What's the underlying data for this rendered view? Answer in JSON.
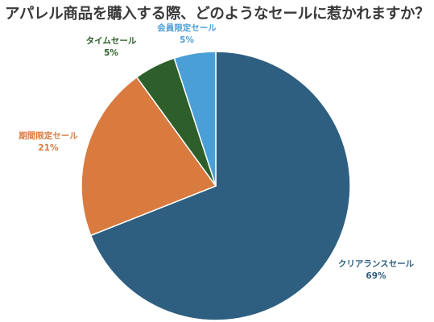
{
  "chart_data": {
    "type": "pie",
    "title": "アパレル商品を購入する際、どのようなセールに惹かれますか？",
    "slices": [
      {
        "label": "クリアランスセール",
        "value": 69,
        "value_label": "69%",
        "color": "#2e5f80"
      },
      {
        "label": "期間限定セール",
        "value": 21,
        "value_label": "21%",
        "color": "#d97a3f"
      },
      {
        "label": "タイムセール",
        "value": 5,
        "value_label": "5%",
        "color": "#2e5e2a"
      },
      {
        "label": "会員限定セール",
        "value": 5,
        "value_label": "5%",
        "color": "#4a9fd6"
      }
    ],
    "start_at": "top",
    "direction": "clockwise",
    "labels_outside": true
  }
}
